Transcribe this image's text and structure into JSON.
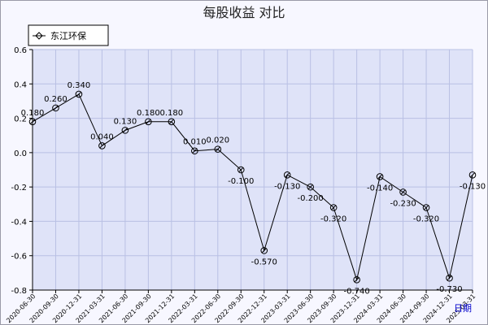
{
  "chart_data": {
    "type": "line",
    "title": "每股收益  对比",
    "legend_position": "top-left",
    "grid": true,
    "ylim": [
      -0.8,
      0.6
    ],
    "yticks": [
      "0.6",
      "0.4",
      "0.2",
      "0.0",
      "-0.2",
      "-0.4",
      "-0.6",
      "-0.8"
    ],
    "x_axis_label": "日期",
    "categories": [
      "2020-06-30",
      "2020-09-30",
      "2020-12-31",
      "2021-03-31",
      "2021-06-30",
      "2021-09-30",
      "2021-12-31",
      "2022-03-31",
      "2022-06-30",
      "2022-09-30",
      "2022-12-31",
      "2023-03-31",
      "2023-06-30",
      "2023-09-30",
      "2023-12-31",
      "2024-03-31",
      "2024-06-30",
      "2024-09-30",
      "2024-12-31",
      "2025-03-31"
    ],
    "series": [
      {
        "name": "东江环保",
        "color": "#000000",
        "values": [
          0.18,
          0.26,
          0.34,
          0.04,
          0.13,
          0.18,
          0.18,
          0.01,
          0.02,
          -0.1,
          -0.57,
          -0.13,
          -0.2,
          -0.32,
          -0.74,
          -0.14,
          -0.23,
          -0.32,
          -0.73,
          -0.13
        ],
        "labels": [
          "0.180",
          "0.260",
          "0.340",
          "0.040",
          "0.130",
          "0.180",
          "0.180",
          "0.010",
          "0.020",
          "-0.100",
          "-0.570",
          "-0.130",
          "-0.200",
          "-0.320",
          "-0.740",
          "-0.140",
          "-0.230",
          "-0.320",
          "-0.730",
          "-0.130"
        ]
      }
    ]
  }
}
